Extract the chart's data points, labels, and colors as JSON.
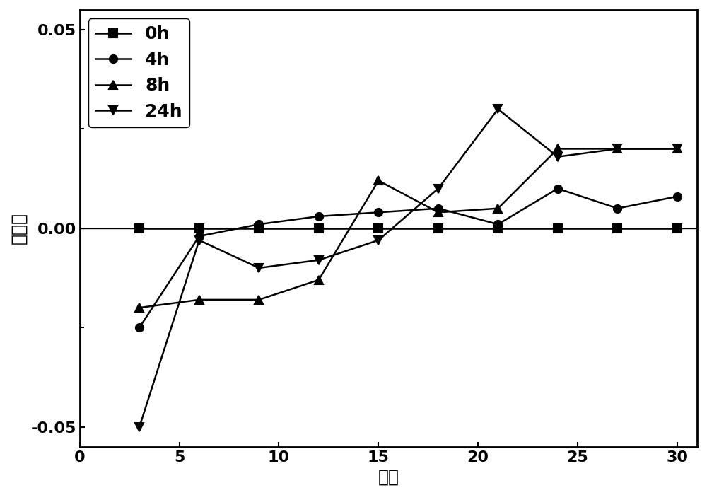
{
  "x_values": [
    3,
    6,
    9,
    12,
    15,
    18,
    21,
    24,
    27,
    30
  ],
  "series": [
    {
      "label": "0h",
      "marker": "s",
      "y": [
        0.0,
        0.0,
        0.0,
        0.0,
        0.0,
        0.0,
        0.0,
        0.0,
        0.0,
        0.0
      ]
    },
    {
      "label": "4h",
      "marker": "o",
      "y": [
        -0.025,
        -0.002,
        0.001,
        0.003,
        0.004,
        0.005,
        0.001,
        0.01,
        0.005,
        0.008
      ]
    },
    {
      "label": "8h",
      "marker": "^",
      "y": [
        -0.02,
        -0.018,
        -0.018,
        -0.013,
        0.012,
        0.004,
        0.005,
        0.02,
        0.02,
        0.02
      ]
    },
    {
      "label": "24h",
      "marker": "v",
      "y": [
        -0.05,
        -0.003,
        -0.01,
        -0.008,
        -0.003,
        0.01,
        0.03,
        0.018,
        0.02,
        0.02
      ]
    }
  ],
  "xlabel": "高度",
  "ylabel": "偏差量",
  "xlim": [
    0,
    31
  ],
  "ylim": [
    -0.055,
    0.055
  ],
  "ytick_labels": [
    "0.05",
    "0.00",
    "-0.05"
  ],
  "ytick_positions": [
    0.05,
    0.0,
    -0.05
  ],
  "ytick_minor": [
    0.025,
    -0.025
  ],
  "xticks": [
    0,
    5,
    10,
    15,
    20,
    25,
    30
  ],
  "color": "#000000",
  "linewidth": 1.8,
  "markersize": 8,
  "legend_fontsize": 18,
  "axis_label_fontsize": 18,
  "tick_fontsize": 16,
  "tick_fontweight": "bold",
  "legend_fontweight": "bold"
}
